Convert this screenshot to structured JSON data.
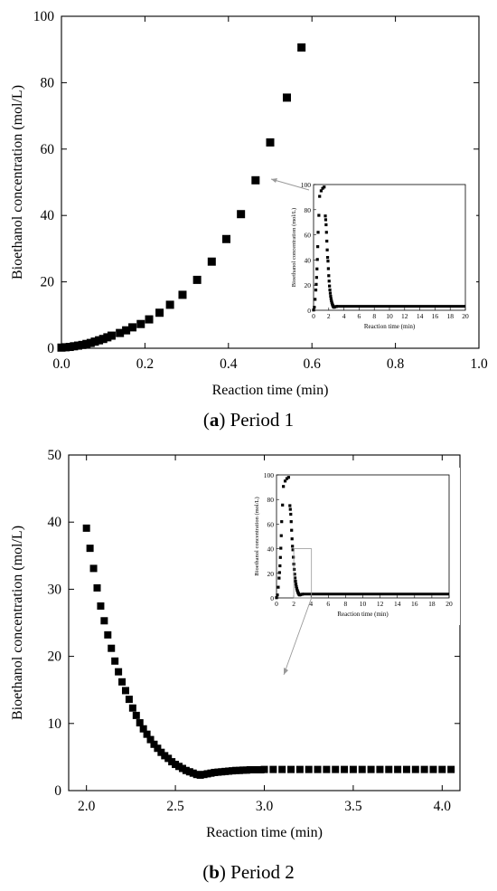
{
  "chart_data": [
    {
      "type": "scatter",
      "panel_letter": "a",
      "caption": "Period 1",
      "xlabel": "Reaction time (min)",
      "ylabel": "Bioethanol concentration (mol/L)",
      "xlim": [
        0,
        1.0
      ],
      "ylim": [
        0,
        100
      ],
      "xticks": [
        0,
        0.2,
        0.4,
        0.6,
        0.8,
        1.0
      ],
      "xtick_labels": [
        "0.0",
        "0.2",
        "0.4",
        "0.6",
        "0.8",
        "1.0"
      ],
      "yticks": [
        0,
        20,
        40,
        60,
        80,
        100
      ],
      "ytick_labels": [
        "0",
        "20",
        "40",
        "60",
        "80",
        "100"
      ],
      "grid": false,
      "marker": "filled-square",
      "x": [
        0.0,
        0.01,
        0.02,
        0.03,
        0.04,
        0.05,
        0.06,
        0.07,
        0.08,
        0.09,
        0.1,
        0.11,
        0.12,
        0.14,
        0.155,
        0.17,
        0.19,
        0.21,
        0.235,
        0.26,
        0.29,
        0.325,
        0.36,
        0.395,
        0.43,
        0.465,
        0.5,
        0.54,
        0.575
      ],
      "y": [
        0.2,
        0.3,
        0.4,
        0.6,
        0.8,
        1.0,
        1.3,
        1.6,
        2.0,
        2.4,
        2.8,
        3.3,
        3.8,
        4.6,
        5.4,
        6.3,
        7.3,
        8.7,
        10.7,
        13.1,
        16.1,
        20.6,
        26.1,
        32.9,
        40.4,
        50.6,
        62.0,
        75.5,
        90.6
      ]
    },
    {
      "type": "scatter",
      "panel_letter": "b",
      "caption": "Period 2",
      "xlabel": "Reaction time (min)",
      "ylabel": "Bioethanol concentration (mol/L)",
      "xlim": [
        1.9,
        4.1
      ],
      "ylim": [
        0,
        50
      ],
      "xticks": [
        2.0,
        2.5,
        3.0,
        3.5,
        4.0
      ],
      "xtick_labels": [
        "2.0",
        "2.5",
        "3.0",
        "3.5",
        "4.0"
      ],
      "yticks": [
        0,
        10,
        20,
        30,
        40,
        50
      ],
      "ytick_labels": [
        "0",
        "10",
        "20",
        "30",
        "40",
        "50"
      ],
      "grid": false,
      "marker": "filled-square",
      "x": [
        2.0,
        2.02,
        2.04,
        2.06,
        2.08,
        2.1,
        2.12,
        2.14,
        2.16,
        2.18,
        2.2,
        2.22,
        2.24,
        2.26,
        2.28,
        2.3,
        2.32,
        2.34,
        2.36,
        2.38,
        2.4,
        2.42,
        2.44,
        2.46,
        2.48,
        2.5,
        2.52,
        2.54,
        2.56,
        2.58,
        2.6,
        2.62,
        2.64,
        2.66,
        2.68,
        2.7,
        2.72,
        2.74,
        2.76,
        2.78,
        2.8,
        2.82,
        2.84,
        2.86,
        2.88,
        2.9,
        2.92,
        2.94,
        2.96,
        2.98,
        3.0,
        3.05,
        3.1,
        3.15,
        3.2,
        3.25,
        3.3,
        3.35,
        3.4,
        3.45,
        3.5,
        3.55,
        3.6,
        3.65,
        3.7,
        3.75,
        3.8,
        3.85,
        3.9,
        3.95,
        4.0,
        4.05
      ],
      "y": [
        39.1,
        36.1,
        33.1,
        30.2,
        27.5,
        25.3,
        23.2,
        21.2,
        19.3,
        17.7,
        16.2,
        14.9,
        13.6,
        12.3,
        11.2,
        10.1,
        9.2,
        8.4,
        7.6,
        6.9,
        6.3,
        5.7,
        5.2,
        4.8,
        4.3,
        3.9,
        3.6,
        3.3,
        3.0,
        2.8,
        2.6,
        2.4,
        2.3,
        2.4,
        2.5,
        2.6,
        2.7,
        2.75,
        2.8,
        2.85,
        2.9,
        2.95,
        3.0,
        3.0,
        3.05,
        3.05,
        3.1,
        3.1,
        3.1,
        3.1,
        3.15,
        3.15,
        3.15,
        3.15,
        3.15,
        3.15,
        3.15,
        3.15,
        3.15,
        3.15,
        3.15,
        3.15,
        3.15,
        3.15,
        3.15,
        3.15,
        3.15,
        3.15,
        3.15,
        3.15,
        3.15,
        3.15
      ]
    }
  ],
  "inset": {
    "xlabel": "Reaction time (min)",
    "ylabel": "Bioethanol concentration (mol/L)",
    "xlim": [
      0,
      20
    ],
    "ylim": [
      0,
      100
    ],
    "xticks": [
      0,
      2,
      4,
      6,
      8,
      10,
      12,
      14,
      16,
      18,
      20
    ],
    "xtick_labels": [
      "0",
      "2",
      "4",
      "6",
      "8",
      "10",
      "12",
      "14",
      "16",
      "18",
      "20"
    ],
    "yticks": [
      0,
      20,
      40,
      60,
      80,
      100
    ],
    "ytick_labels": [
      "0",
      "20",
      "40",
      "60",
      "80",
      "100"
    ],
    "x": [
      0.0,
      0.1,
      0.2,
      0.3,
      0.35,
      0.4,
      0.45,
      0.5,
      0.55,
      0.6,
      0.7,
      0.8,
      1.0,
      1.2,
      1.4,
      1.55,
      1.6,
      1.65,
      1.7,
      1.75,
      1.8,
      1.85,
      1.9,
      1.95,
      2.0,
      2.05,
      2.1,
      2.15,
      2.2,
      2.25,
      2.3,
      2.35,
      2.4,
      2.45,
      2.5,
      2.55,
      2.6,
      2.65,
      2.7,
      2.8,
      3.0
    ],
    "y": [
      0.2,
      2.4,
      8.7,
      16.1,
      20.6,
      26.1,
      32.9,
      40.4,
      50.6,
      62.0,
      75.5,
      90.6,
      95.0,
      97.0,
      98.0,
      75.0,
      72.0,
      68.0,
      62.0,
      55.0,
      48.0,
      42.0,
      39.1,
      33.1,
      27.5,
      23.2,
      19.3,
      16.2,
      13.6,
      11.2,
      9.2,
      7.6,
      6.3,
      5.2,
      4.3,
      3.6,
      3.0,
      2.6,
      2.4,
      2.7,
      3.0
    ],
    "flat_from_x": 3.0,
    "flat_y": 3.15,
    "marker": "filled-square",
    "line_color": "#000000",
    "callout_color": "#999999"
  },
  "colors": {
    "marker": "#000000",
    "axis": "#000000"
  }
}
